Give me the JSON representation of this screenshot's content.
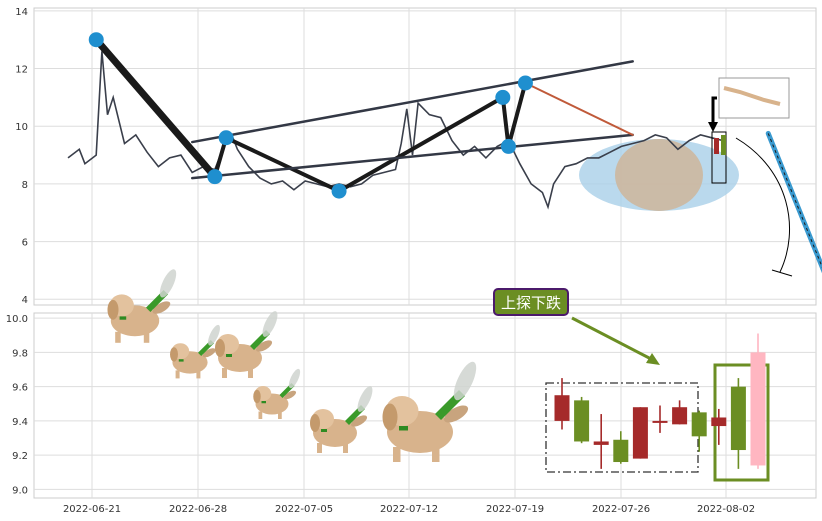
{
  "chart_data": [
    {
      "type": "line",
      "panel": "price-with-pattern-lines",
      "title": "",
      "xlabel": "",
      "ylabel": "",
      "ylim": [
        3.8,
        14.1
      ],
      "y_ticks": [
        4,
        6,
        8,
        10,
        12,
        14
      ],
      "grid": true,
      "series": [
        {
          "values": [
            [
              0,
              8.9
            ],
            [
              1,
              9.2
            ],
            [
              1.5,
              8.7
            ],
            [
              2.5,
              9.0
            ],
            [
              3,
              12.6
            ],
            [
              3.5,
              10.4
            ],
            [
              4,
              11.0
            ],
            [
              5,
              9.4
            ],
            [
              6,
              9.7
            ],
            [
              7,
              9.1
            ],
            [
              8,
              8.6
            ],
            [
              9,
              8.9
            ],
            [
              10,
              9.0
            ],
            [
              11,
              8.4
            ],
            [
              12,
              8.6
            ],
            [
              13,
              8.5
            ],
            [
              14,
              9.5
            ],
            [
              14.5,
              9.7
            ],
            [
              15,
              9.2
            ],
            [
              16,
              8.6
            ],
            [
              17,
              8.2
            ],
            [
              18,
              8.0
            ],
            [
              19,
              8.1
            ],
            [
              20,
              7.8
            ],
            [
              21,
              8.1
            ],
            [
              22,
              8.0
            ],
            [
              23,
              7.9
            ],
            [
              24,
              8.0
            ],
            [
              25,
              7.9
            ],
            [
              26,
              8.0
            ],
            [
              27,
              8.3
            ],
            [
              28,
              8.4
            ],
            [
              29,
              8.5
            ],
            [
              29.5,
              9.4
            ],
            [
              30,
              10.6
            ],
            [
              30.5,
              9.0
            ],
            [
              31,
              10.8
            ],
            [
              32,
              10.4
            ],
            [
              33,
              10.3
            ],
            [
              34,
              9.5
            ],
            [
              35,
              9.0
            ],
            [
              36,
              9.3
            ],
            [
              37,
              8.9
            ],
            [
              38,
              9.3
            ],
            [
              39,
              9.5
            ],
            [
              40,
              8.7
            ],
            [
              41,
              8.0
            ],
            [
              42,
              7.7
            ],
            [
              42.5,
              7.2
            ],
            [
              43,
              8.0
            ],
            [
              44,
              8.6
            ],
            [
              45,
              8.7
            ],
            [
              46,
              8.9
            ],
            [
              47,
              8.9
            ],
            [
              48,
              9.1
            ],
            [
              49,
              9.3
            ],
            [
              50,
              9.4
            ],
            [
              51,
              9.5
            ],
            [
              52,
              9.7
            ],
            [
              53,
              9.6
            ],
            [
              54,
              9.2
            ],
            [
              55,
              9.5
            ],
            [
              56,
              9.7
            ],
            [
              57,
              9.6
            ],
            [
              58,
              9.5
            ]
          ]
        }
      ],
      "markers": [
        {
          "x": 2.5,
          "y": 13.0
        },
        {
          "x": 13.0,
          "y": 8.25
        },
        {
          "x": 14.0,
          "y": 9.6
        },
        {
          "x": 24.0,
          "y": 7.75
        },
        {
          "x": 38.5,
          "y": 11.0
        },
        {
          "x": 39.0,
          "y": 9.3
        },
        {
          "x": 40.5,
          "y": 11.5
        }
      ],
      "trendlines": [
        {
          "from": [
            11.0,
            9.45
          ],
          "to": [
            50.0,
            12.25
          ]
        },
        {
          "from": [
            11.0,
            8.2
          ],
          "to": [
            50.0,
            9.7
          ]
        },
        {
          "from": [
            40.5,
            11.5
          ],
          "to": [
            50.0,
            9.7
          ]
        },
        {
          "from": [
            62.0,
            9.75
          ],
          "to": [
            67.0,
            4.9
          ]
        }
      ]
    },
    {
      "type": "candlestick",
      "panel": "candles",
      "title": "",
      "xlabel": "",
      "ylabel": "",
      "ylim": [
        8.95,
        10.03
      ],
      "y_ticks": [
        9.0,
        9.2,
        9.4,
        9.6,
        9.8,
        10.0
      ],
      "x_tick_labels": [
        "2022-06-21",
        "2022-06-28",
        "2022-07-05",
        "2022-07-12",
        "2022-07-19",
        "2022-07-26",
        "2022-08-02"
      ],
      "grid": true,
      "candles": [
        {
          "open": 9.55,
          "close": 9.4,
          "high": 9.65,
          "low": 9.35,
          "color": "#a52a2a"
        },
        {
          "open": 9.28,
          "close": 9.52,
          "high": 9.54,
          "low": 9.27,
          "color": "#6b8e23"
        },
        {
          "open": 9.28,
          "close": 9.26,
          "high": 9.44,
          "low": 9.12,
          "color": "#a52a2a"
        },
        {
          "open": 9.16,
          "close": 9.29,
          "high": 9.34,
          "low": 9.15,
          "color": "#6b8e23"
        },
        {
          "open": 9.48,
          "close": 9.18,
          "high": 9.48,
          "low": 9.18,
          "color": "#a52a2a"
        },
        {
          "open": 9.4,
          "close": 9.39,
          "high": 9.49,
          "low": 9.33,
          "color": "#a52a2a"
        },
        {
          "open": 9.48,
          "close": 9.38,
          "high": 9.52,
          "low": 9.38,
          "color": "#a52a2a"
        },
        {
          "open": 9.31,
          "close": 9.45,
          "high": 9.46,
          "low": 9.22,
          "color": "#6b8e23"
        },
        {
          "open": 9.42,
          "close": 9.37,
          "high": 9.47,
          "low": 9.26,
          "color": "#a52a2a"
        },
        {
          "open": 9.23,
          "close": 9.6,
          "high": 9.65,
          "low": 9.12,
          "color": "#6b8e23"
        },
        {
          "open": 9.8,
          "close": 9.14,
          "high": 9.91,
          "low": 9.12,
          "color": "#ffb6c1"
        }
      ],
      "annotation": "上探下跌"
    }
  ]
}
